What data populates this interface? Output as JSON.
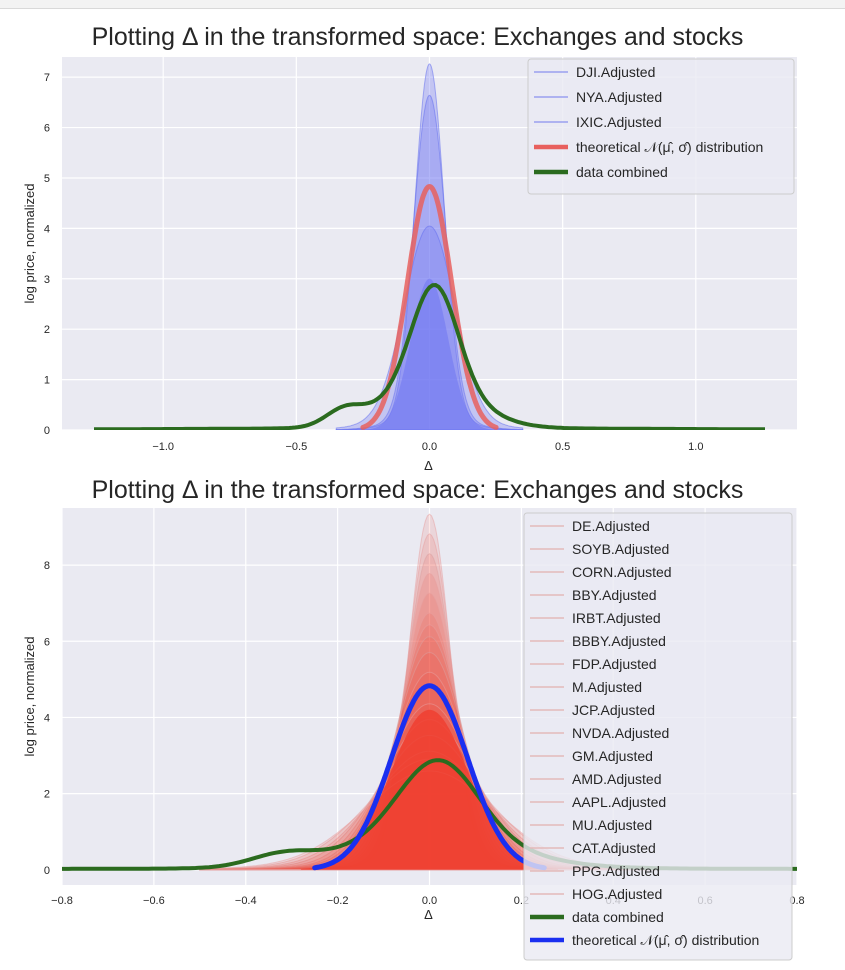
{
  "chart_data": [
    {
      "type": "area",
      "title": "Plotting Δ in the transformed space: Exchanges and stocks",
      "xlabel": "Δ",
      "ylabel": "log price, normalized",
      "xlim": [
        -1.38,
        1.38
      ],
      "ylim": [
        0,
        7.4
      ],
      "grid": true,
      "legend_position": "top-right",
      "x_ticks": [
        -1.0,
        -0.5,
        0.0,
        0.5,
        1.0
      ],
      "x_tick_labels": [
        "−1.0",
        "−0.5",
        "0.0",
        "0.5",
        "1.0"
      ],
      "y_ticks": [
        0,
        1,
        2,
        3,
        4,
        5,
        6,
        7
      ],
      "y_tick_labels": [
        "0",
        "1",
        "2",
        "3",
        "4",
        "5",
        "6",
        "7"
      ],
      "series": [
        {
          "name": "DJI.Adjusted",
          "kind": "kde",
          "color": "#5f6bf0",
          "peak": 7.0,
          "sigma": 0.055,
          "mu": 0.0,
          "x_range": [
            -0.35,
            0.35
          ]
        },
        {
          "name": "NYA.Adjusted",
          "kind": "kde",
          "color": "#5f6bf0",
          "peak": 6.4,
          "sigma": 0.06,
          "mu": 0.0,
          "x_range": [
            -0.35,
            0.35
          ]
        },
        {
          "name": "IXIC.Adjusted",
          "kind": "kde",
          "color": "#5f6bf0",
          "peak": 3.9,
          "sigma": 0.095,
          "mu": 0.0,
          "x_range": [
            -0.35,
            0.35
          ]
        },
        {
          "name": "theoretical 𝒩(μ̂, σ̂) distribution",
          "kind": "normal",
          "color": "#e8605e",
          "peak": 4.83,
          "mu": 0.0,
          "sigma": 0.083,
          "x_range": [
            -0.25,
            0.25
          ]
        },
        {
          "name": "data combined",
          "kind": "combined",
          "color": "#2b6b1f",
          "x_range": [
            -1.26,
            1.26
          ]
        }
      ]
    },
    {
      "type": "area",
      "title": "Plotting Δ in the transformed space: Exchanges and stocks",
      "xlabel": "Δ",
      "ylabel": "log price, normalized",
      "xlim": [
        -0.8,
        0.8
      ],
      "ylim": [
        -0.4,
        9.5
      ],
      "grid": true,
      "legend_position": "right",
      "x_ticks": [
        -0.8,
        -0.6,
        -0.4,
        -0.2,
        0.0,
        0.2,
        0.4,
        0.6,
        0.8
      ],
      "x_tick_labels": [
        "−0.8",
        "−0.6",
        "−0.4",
        "−0.2",
        "0.0",
        "0.2",
        "0.4",
        "0.6",
        "0.8"
      ],
      "y_ticks": [
        0,
        2,
        4,
        6,
        8
      ],
      "y_tick_labels": [
        "0",
        "2",
        "4",
        "6",
        "8"
      ],
      "series": [
        {
          "name": "DE.Adjusted",
          "kind": "kde",
          "color": "#e8a0a0",
          "peak": 9.0,
          "sigma": 0.045
        },
        {
          "name": "SOYB.Adjusted",
          "kind": "kde",
          "color": "#e8a0a0",
          "peak": 8.5,
          "sigma": 0.048
        },
        {
          "name": "CORN.Adjusted",
          "kind": "kde",
          "color": "#dba0a0",
          "peak": 8.0,
          "sigma": 0.05
        },
        {
          "name": "BBY.Adjusted",
          "kind": "kde",
          "color": "#e8a0a0",
          "peak": 7.5,
          "sigma": 0.055
        },
        {
          "name": "IRBT.Adjusted",
          "kind": "kde",
          "color": "#e8a0a0",
          "peak": 7.0,
          "sigma": 0.058
        },
        {
          "name": "BBBY.Adjusted",
          "kind": "kde",
          "color": "#e8a0a0",
          "peak": 6.5,
          "sigma": 0.062
        },
        {
          "name": "FDP.Adjusted",
          "kind": "kde",
          "color": "#e8a0a0",
          "peak": 6.2,
          "sigma": 0.066
        },
        {
          "name": "M.Adjusted",
          "kind": "kde",
          "color": "#dba0a0",
          "peak": 5.9,
          "sigma": 0.07
        },
        {
          "name": "JCP.Adjusted",
          "kind": "kde",
          "color": "#dba0a0",
          "peak": 5.5,
          "sigma": 0.075
        },
        {
          "name": "NVDA.Adjusted",
          "kind": "kde",
          "color": "#e8a0a0",
          "peak": 5.0,
          "sigma": 0.08
        },
        {
          "name": "GM.Adjusted",
          "kind": "kde",
          "color": "#e8a0a0",
          "peak": 4.6,
          "sigma": 0.086
        },
        {
          "name": "AMD.Adjusted",
          "kind": "kde",
          "color": "#e8a0a0",
          "peak": 4.2,
          "sigma": 0.092
        },
        {
          "name": "AAPL.Adjusted",
          "kind": "kde",
          "color": "#e8a0a0",
          "peak": 3.8,
          "sigma": 0.1
        },
        {
          "name": "MU.Adjusted",
          "kind": "kde",
          "color": "#dba0a0",
          "peak": 3.4,
          "sigma": 0.11
        },
        {
          "name": "CAT.Adjusted",
          "kind": "kde",
          "color": "#e8a0a0",
          "peak": 3.0,
          "sigma": 0.12
        },
        {
          "name": "PPG.Adjusted",
          "kind": "kde",
          "color": "#e8a0a0",
          "peak": 2.8,
          "sigma": 0.13
        },
        {
          "name": "HOG.Adjusted",
          "kind": "kde",
          "color": "#e8a0a0",
          "peak": 2.5,
          "sigma": 0.14
        },
        {
          "name": "data combined",
          "kind": "combined",
          "color": "#2b6b1f",
          "x_range": [
            -0.8,
            0.8
          ]
        },
        {
          "name": "theoretical 𝒩(μ̂, σ̂) distribution",
          "kind": "normal",
          "color": "#1a2ff0",
          "peak": 4.83,
          "mu": 0.0,
          "sigma": 0.083,
          "x_range": [
            -0.25,
            0.25
          ]
        }
      ]
    }
  ],
  "legend_swatch_colors": {
    "exchange_line": "#9aa0f0",
    "stock_line": "#e3b9b9",
    "fill_red": "#f04030",
    "fill_blue": "#6f77f3"
  }
}
